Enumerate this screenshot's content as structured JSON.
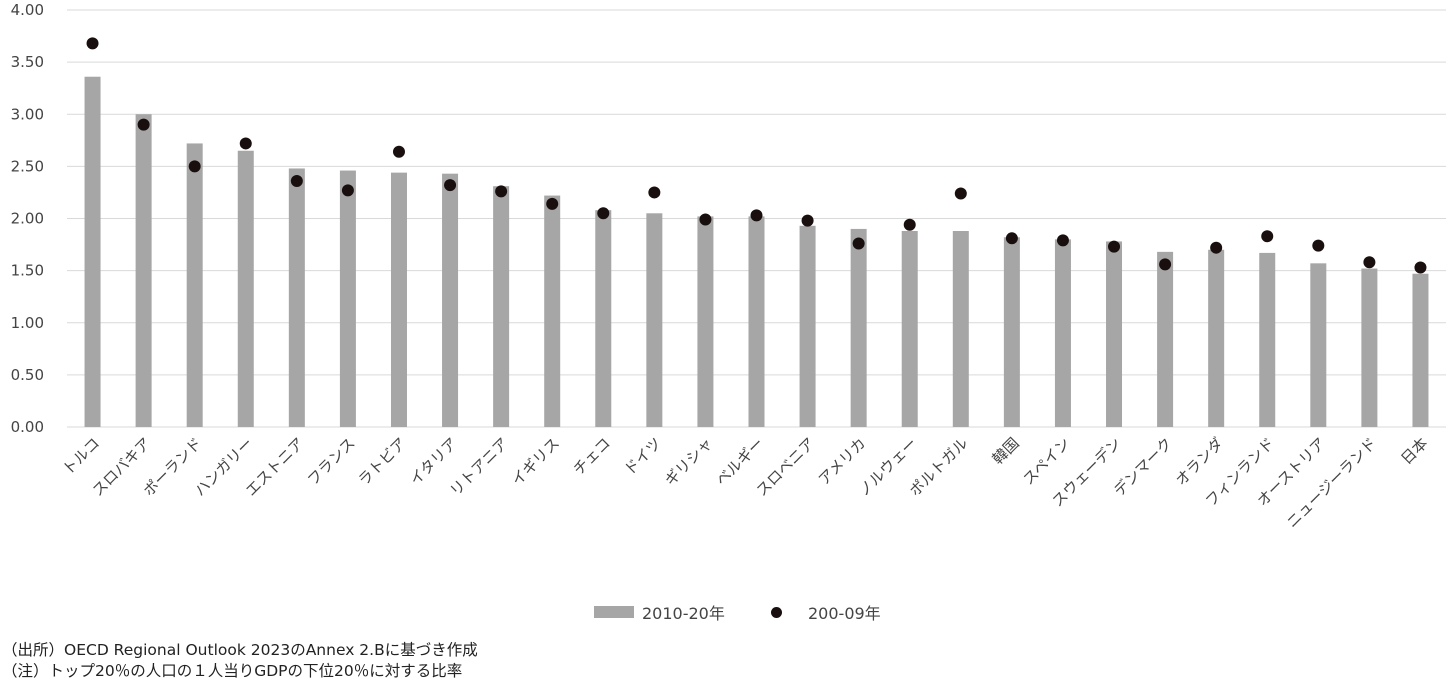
{
  "chart_data": {
    "type": "bar",
    "ylim": [
      0,
      4
    ],
    "y_ticks": [
      "0.00",
      "0.50",
      "1.00",
      "1.50",
      "2.00",
      "2.50",
      "3.00",
      "3.50",
      "4.00"
    ],
    "grid": true,
    "legend_position": "bottom",
    "categories": [
      "トルコ",
      "スロバキア",
      "ポーランド",
      "ハンガリー",
      "エストニア",
      "フランス",
      "ラトビア",
      "イタリア",
      "リトアニア",
      "イギリス",
      "チェコ",
      "ドイツ",
      "ギリシャ",
      "ベルギー",
      "スロベニア",
      "アメリカ",
      "ノルウェー",
      "ポルトガル",
      "韓国",
      "スペイン",
      "スウェーデン",
      "デンマーク",
      "オランダ",
      "フィンランド",
      "オーストリア",
      "ニュージーランド",
      "日本"
    ],
    "series": [
      {
        "name": "2010-20年",
        "mark": "bar",
        "color": "#a6a6a6",
        "values": [
          3.36,
          3.0,
          2.72,
          2.65,
          2.48,
          2.46,
          2.44,
          2.43,
          2.31,
          2.22,
          2.08,
          2.05,
          2.02,
          2.02,
          1.93,
          1.9,
          1.88,
          1.88,
          1.82,
          1.8,
          1.78,
          1.68,
          1.7,
          1.67,
          1.57,
          1.52,
          1.47
        ]
      },
      {
        "name": "200-09年",
        "mark": "dot",
        "color": "#1a0f0f",
        "values": [
          3.68,
          2.9,
          2.5,
          2.72,
          2.36,
          2.27,
          2.64,
          2.32,
          2.26,
          2.14,
          2.05,
          2.25,
          1.99,
          2.03,
          1.98,
          1.76,
          1.94,
          2.24,
          1.81,
          1.79,
          1.73,
          1.56,
          1.72,
          1.83,
          1.74,
          1.58,
          1.53
        ]
      }
    ]
  },
  "notes": {
    "source": "（出所）OECD Regional Outlook 2023のAnnex 2.Bに基づき作成",
    "note": "（注）トップ20％の人口の１人当りGDPの下位20％に対する比率"
  }
}
